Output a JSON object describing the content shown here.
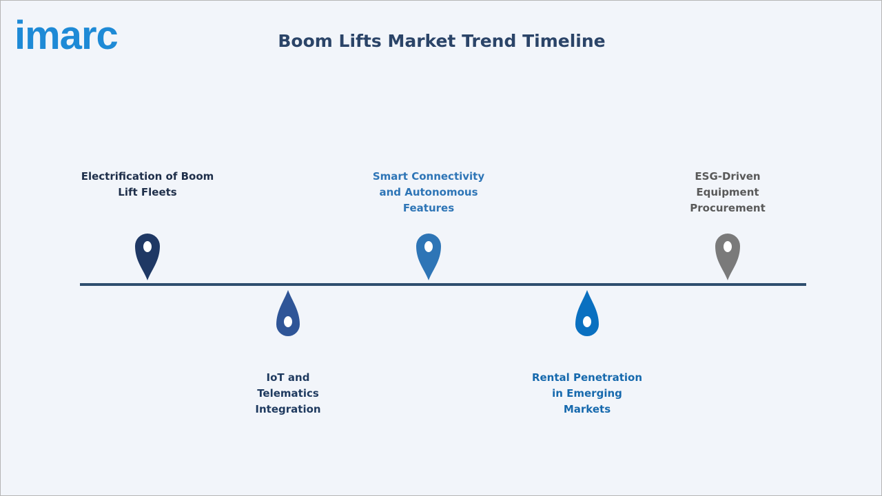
{
  "logo": {
    "text": "imarc",
    "color": "#1e8ad6"
  },
  "title": "Boom Lifts Market Trend Timeline",
  "timeline": {
    "line_color": "#2f4e6e",
    "items": [
      {
        "label": "Electrification of Boom Lift Fleets",
        "pin_color": "#1f3864",
        "text_color": "#1f2f4a"
      },
      {
        "label": "IoT and Telematics Integration",
        "pin_color": "#2f5597",
        "text_color": "#1f3a5f"
      },
      {
        "label": "Smart Connectivity and Autonomous Features",
        "pin_color": "#2e75b6",
        "text_color": "#2e75b6"
      },
      {
        "label": "Rental Penetration in Emerging Markets",
        "pin_color": "#0a70c0",
        "text_color": "#1669ad"
      },
      {
        "label": "ESG-Driven Equipment Procurement",
        "pin_color": "#7a7a7a",
        "text_color": "#595959"
      }
    ]
  }
}
